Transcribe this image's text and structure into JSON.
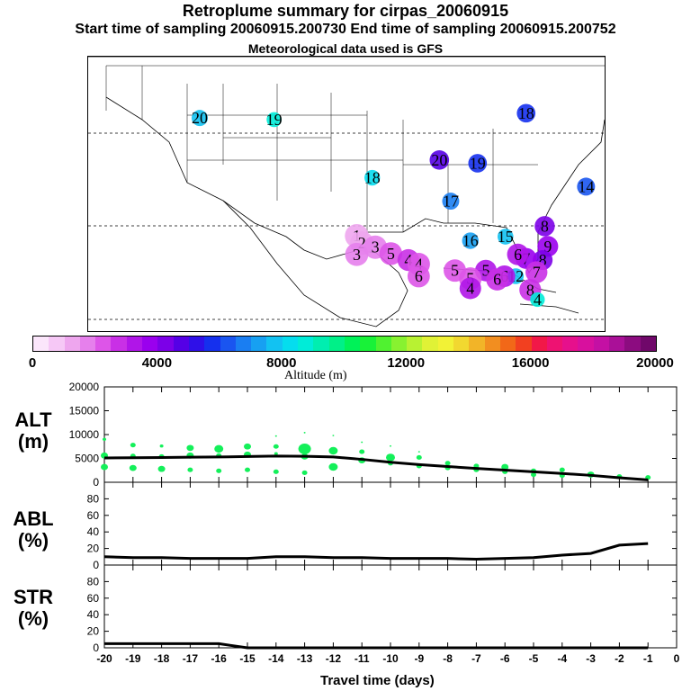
{
  "header": {
    "title": "Retroplume summary for cirpas_20060915",
    "subtitle": "Start time of sampling 20060915.200730     End time of sampling 20060915.200752",
    "met": "Meteorological data used is GFS"
  },
  "map": {
    "markers": [
      {
        "label": "20",
        "lon": -109.2,
        "lat": 40.4,
        "alt": 7500
      },
      {
        "label": "19",
        "lon": -102.0,
        "lat": 40.2,
        "alt": 8500
      },
      {
        "label": "18",
        "lon": -92.5,
        "lat": 33.0,
        "alt": 8000
      },
      {
        "label": "20",
        "lon": -86.0,
        "lat": 35.2,
        "alt": 4800
      },
      {
        "label": "19",
        "lon": -82.3,
        "lat": 34.8,
        "alt": 5500
      },
      {
        "label": "18",
        "lon": -77.6,
        "lat": 41.0,
        "alt": 5500
      },
      {
        "label": "17",
        "lon": -84.9,
        "lat": 30.1,
        "alt": 6800
      },
      {
        "label": "16",
        "lon": -83.0,
        "lat": 25.2,
        "alt": 7200
      },
      {
        "label": "15",
        "lon": -79.6,
        "lat": 25.7,
        "alt": 7800
      },
      {
        "label": "14",
        "lon": -71.8,
        "lat": 31.9,
        "alt": 6000
      },
      {
        "label": "8",
        "lon": -75.8,
        "lat": 27.0,
        "alt": 4200
      },
      {
        "label": "9",
        "lon": -75.5,
        "lat": 24.5,
        "alt": 3700
      },
      {
        "label": "8",
        "lon": -76.0,
        "lat": 22.8,
        "alt": 4400
      },
      {
        "label": "7",
        "lon": -77.6,
        "lat": 23.0,
        "alt": 3500
      },
      {
        "label": "6",
        "lon": -78.4,
        "lat": 23.5,
        "alt": 3000
      },
      {
        "label": "7",
        "lon": -76.6,
        "lat": 21.3,
        "alt": 2700
      },
      {
        "label": "12",
        "lon": -78.6,
        "lat": 20.8,
        "alt": 7800
      },
      {
        "label": "6",
        "lon": -79.7,
        "lat": 20.8,
        "alt": 3000
      },
      {
        "label": "5",
        "lon": -81.5,
        "lat": 21.5,
        "alt": 3000
      },
      {
        "label": "6",
        "lon": -80.4,
        "lat": 20.4,
        "alt": 2600
      },
      {
        "label": "5",
        "lon": -84.5,
        "lat": 21.5,
        "alt": 2300
      },
      {
        "label": "5",
        "lon": -83.0,
        "lat": 20.5,
        "alt": 2200
      },
      {
        "label": "4",
        "lon": -83.0,
        "lat": 19.3,
        "alt": 3000
      },
      {
        "label": "8",
        "lon": -77.2,
        "lat": 19.1,
        "alt": 2800
      },
      {
        "label": "4",
        "lon": -76.5,
        "lat": 17.9,
        "alt": 8800
      },
      {
        "label": "1",
        "lon": -94.0,
        "lat": 25.8,
        "alt": 1200
      },
      {
        "label": "2",
        "lon": -93.5,
        "lat": 24.9,
        "alt": 1300
      },
      {
        "label": "3",
        "lon": -92.2,
        "lat": 24.4,
        "alt": 1500
      },
      {
        "label": "3",
        "lon": -94.0,
        "lat": 23.5,
        "alt": 1700
      },
      {
        "label": "5",
        "lon": -90.7,
        "lat": 23.6,
        "alt": 2000
      },
      {
        "label": "4",
        "lon": -89.0,
        "lat": 22.8,
        "alt": 2800
      },
      {
        "label": "4",
        "lon": -88.0,
        "lat": 22.3,
        "alt": 2200
      },
      {
        "label": "6",
        "lon": -88.0,
        "lat": 20.8,
        "alt": 2400
      }
    ]
  },
  "colorbar": {
    "min": 0,
    "max": 20000,
    "tick_labels": [
      "0",
      "4000",
      "8000",
      "12000",
      "16000",
      "20000"
    ],
    "title": "Altitude (m)",
    "colors": [
      "#fbe6fb",
      "#f6c8f6",
      "#eea6ee",
      "#e680ec",
      "#dd55e8",
      "#c930e6",
      "#b015e8",
      "#9a00ee",
      "#7c00e8",
      "#5500e6",
      "#2f10e8",
      "#1530ee",
      "#1a55f0",
      "#1a7ef2",
      "#17a0f2",
      "#12c2f2",
      "#05ddee",
      "#00ecd8",
      "#00eeb0",
      "#00f088",
      "#00f258",
      "#18f238",
      "#50f230",
      "#88f230",
      "#b8f232",
      "#e0f236",
      "#f2f236",
      "#f2d830",
      "#f2b428",
      "#f28e20",
      "#f26818",
      "#f24020",
      "#f21848",
      "#ee1272",
      "#e6108c",
      "#d8109e",
      "#c410a4",
      "#aa1098",
      "#8c0c80",
      "#70086a"
    ]
  },
  "chart_data": [
    {
      "type": "scatter",
      "panel": "ALT",
      "ylabel": "ALT\n(m)",
      "ylim": [
        0,
        20000
      ],
      "yticks": [
        "0",
        "5000",
        "10000",
        "15000",
        "20000"
      ],
      "xlim": [
        -20,
        0
      ],
      "mean_line": {
        "x": [
          -20,
          -19,
          -18,
          -17,
          -16,
          -15,
          -14,
          -13,
          -12,
          -11,
          -10,
          -9,
          -8,
          -7,
          -6,
          -5,
          -4,
          -3,
          -2,
          -1
        ],
        "y": [
          5100,
          5150,
          5200,
          5250,
          5300,
          5400,
          5500,
          5450,
          5300,
          4800,
          4200,
          3700,
          3300,
          2900,
          2550,
          2200,
          1850,
          1450,
          950,
          500
        ]
      },
      "points": [
        {
          "x": -20,
          "y": 9000,
          "s": 2
        },
        {
          "x": -20,
          "y": 5600,
          "s": 4
        },
        {
          "x": -20,
          "y": 3200,
          "s": 4
        },
        {
          "x": -19,
          "y": 7800,
          "s": 3
        },
        {
          "x": -19,
          "y": 5500,
          "s": 3
        },
        {
          "x": -19,
          "y": 3000,
          "s": 4
        },
        {
          "x": -18,
          "y": 7600,
          "s": 2
        },
        {
          "x": -18,
          "y": 5400,
          "s": 3
        },
        {
          "x": -18,
          "y": 2800,
          "s": 4
        },
        {
          "x": -17,
          "y": 7200,
          "s": 4
        },
        {
          "x": -17,
          "y": 5600,
          "s": 4
        },
        {
          "x": -17,
          "y": 2600,
          "s": 3
        },
        {
          "x": -16,
          "y": 7000,
          "s": 5
        },
        {
          "x": -16,
          "y": 5600,
          "s": 3
        },
        {
          "x": -16,
          "y": 2400,
          "s": 3
        },
        {
          "x": -15,
          "y": 7500,
          "s": 4
        },
        {
          "x": -15,
          "y": 5800,
          "s": 4
        },
        {
          "x": -15,
          "y": 2600,
          "s": 3
        },
        {
          "x": -14,
          "y": 9700,
          "s": 1
        },
        {
          "x": -14,
          "y": 7500,
          "s": 3
        },
        {
          "x": -14,
          "y": 6000,
          "s": 2
        },
        {
          "x": -14,
          "y": 2200,
          "s": 3
        },
        {
          "x": -13,
          "y": 10400,
          "s": 1
        },
        {
          "x": -13,
          "y": 7000,
          "s": 7
        },
        {
          "x": -13,
          "y": 5400,
          "s": 4
        },
        {
          "x": -13,
          "y": 2000,
          "s": 3
        },
        {
          "x": -12,
          "y": 9800,
          "s": 1
        },
        {
          "x": -12,
          "y": 6600,
          "s": 5
        },
        {
          "x": -12,
          "y": 3200,
          "s": 5
        },
        {
          "x": -11,
          "y": 8400,
          "s": 1
        },
        {
          "x": -11,
          "y": 6400,
          "s": 3
        },
        {
          "x": -11,
          "y": 4600,
          "s": 4
        },
        {
          "x": -10,
          "y": 7600,
          "s": 1
        },
        {
          "x": -10,
          "y": 5200,
          "s": 5
        },
        {
          "x": -10,
          "y": 4000,
          "s": 3
        },
        {
          "x": -9,
          "y": 6400,
          "s": 1
        },
        {
          "x": -9,
          "y": 5200,
          "s": 3
        },
        {
          "x": -9,
          "y": 3400,
          "s": 3
        },
        {
          "x": -8,
          "y": 4000,
          "s": 3
        },
        {
          "x": -8,
          "y": 3000,
          "s": 3
        },
        {
          "x": -7,
          "y": 3400,
          "s": 3
        },
        {
          "x": -7,
          "y": 2600,
          "s": 3
        },
        {
          "x": -6,
          "y": 3200,
          "s": 4
        },
        {
          "x": -6,
          "y": 2200,
          "s": 3
        },
        {
          "x": -5,
          "y": 2400,
          "s": 3
        },
        {
          "x": -5,
          "y": 1600,
          "s": 3
        },
        {
          "x": -4,
          "y": 2600,
          "s": 3
        },
        {
          "x": -4,
          "y": 1400,
          "s": 3
        },
        {
          "x": -3,
          "y": 1600,
          "s": 4
        },
        {
          "x": -2,
          "y": 1200,
          "s": 3
        },
        {
          "x": -1,
          "y": 1000,
          "s": 3
        }
      ]
    },
    {
      "type": "line",
      "panel": "ABL",
      "ylabel": "ABL\n(%)",
      "ylim": [
        0,
        100
      ],
      "yticks": [
        "0",
        "20",
        "40",
        "60",
        "80"
      ],
      "x": [
        -20,
        -19,
        -18,
        -17,
        -16,
        -15,
        -14,
        -13,
        -12,
        -11,
        -10,
        -9,
        -8,
        -7,
        -6,
        -5,
        -4,
        -3,
        -2,
        -1
      ],
      "y": [
        10,
        9,
        9,
        8,
        8,
        8,
        10,
        10,
        9,
        9,
        8,
        8,
        8,
        7,
        8,
        9,
        12,
        14,
        24,
        26
      ]
    },
    {
      "type": "line",
      "panel": "STR",
      "ylabel": "STR\n(%)",
      "ylim": [
        0,
        100
      ],
      "yticks": [
        "0",
        "20",
        "40",
        "60",
        "80"
      ],
      "x": [
        -20,
        -19,
        -18,
        -17,
        -16,
        -15,
        -14,
        -13,
        -12,
        -11,
        -10,
        -9,
        -8,
        -7,
        -6,
        -5,
        -4,
        -3,
        -2,
        -1
      ],
      "y": [
        5,
        5,
        5,
        5,
        5,
        0,
        0,
        0,
        0,
        0,
        0,
        0,
        0,
        0,
        0,
        0,
        0,
        0,
        0,
        0
      ]
    }
  ],
  "xaxis": {
    "ticks": [
      "-20",
      "-19",
      "-18",
      "-17",
      "-16",
      "-15",
      "-14",
      "-13",
      "-12",
      "-11",
      "-10",
      "-9",
      "-8",
      "-7",
      "-6",
      "-5",
      "-4",
      "-3",
      "-2",
      "-1",
      "0"
    ],
    "label": "Travel time (days)"
  },
  "colors": {
    "points": "#14f05a",
    "line": "#000000",
    "map_text": "#000000"
  }
}
